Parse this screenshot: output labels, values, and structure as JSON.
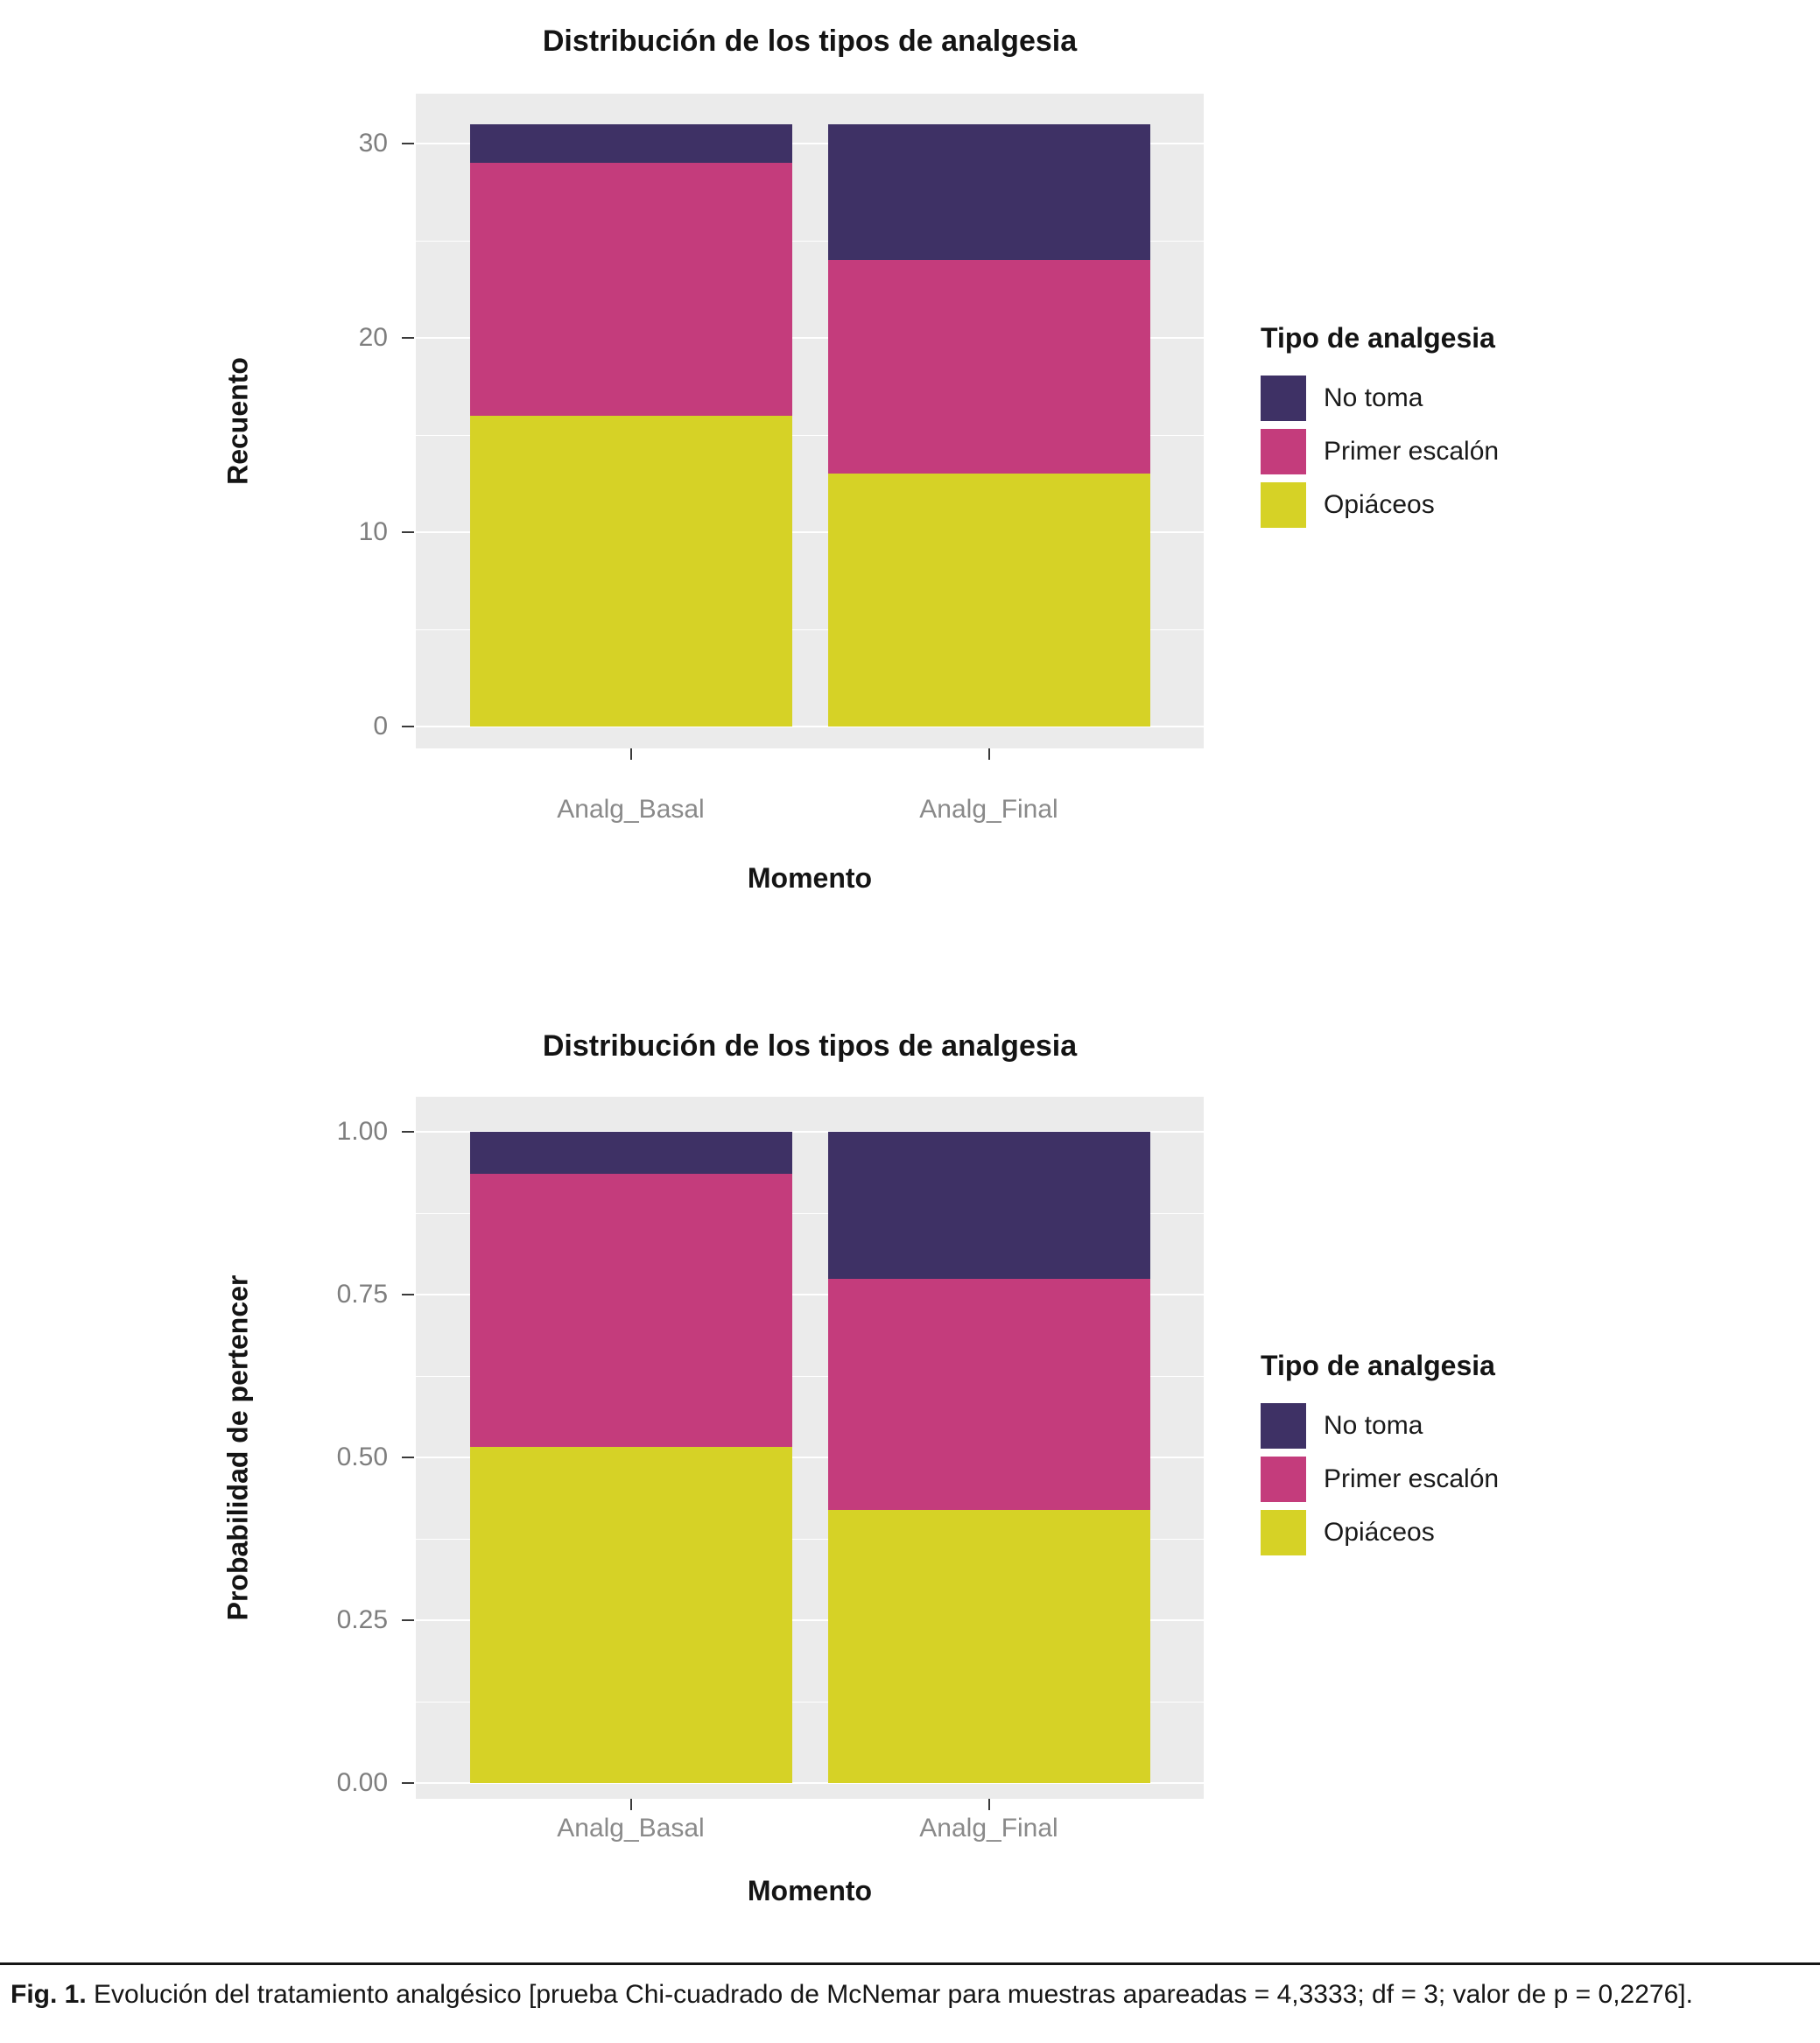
{
  "caption": {
    "label": "Fig. 1.",
    "text": " Evolución del tratamiento analgésico [prueba Chi-cuadrado de McNemar para muestras apareadas = 4,3333; df = 3; valor de p = 0,2276]."
  },
  "colors": {
    "panel_background": "#EBEBEB",
    "gridline": "#FFFFFF",
    "axis_text": "#8A8A8A",
    "no_toma": "#3E3165",
    "primer_escalon": "#C43C7C",
    "opiaceos": "#D6D226"
  },
  "chart_data": [
    {
      "type": "bar",
      "stacked": true,
      "title": "Distribución de los tipos de analgesia",
      "xlabel": "Momento",
      "ylabel": "Recuento",
      "categories": [
        "Analg_Basal",
        "Analg_Final"
      ],
      "series": [
        {
          "name": "No toma",
          "color": "#3E3165",
          "values": [
            2,
            7
          ]
        },
        {
          "name": "Primer escalón",
          "color": "#C43C7C",
          "values": [
            13,
            11
          ]
        },
        {
          "name": "Opiáceos",
          "color": "#D6D226",
          "values": [
            16,
            13
          ]
        }
      ],
      "stack_order_bottom_to_top": [
        "Opiáceos",
        "Primer escalón",
        "No toma"
      ],
      "totals": [
        31,
        31
      ],
      "ylim": [
        0,
        31
      ],
      "yticks": [
        {
          "value": 0,
          "label": "0"
        },
        {
          "value": 10,
          "label": "10"
        },
        {
          "value": 20,
          "label": "20"
        },
        {
          "value": 30,
          "label": "30"
        }
      ],
      "minor_gridlines": [
        5,
        15,
        25
      ],
      "legend": {
        "title": "Tipo de analgesia",
        "position": "right"
      },
      "grid": true
    },
    {
      "type": "bar",
      "stacked": true,
      "title": "Distribución de los tipos de analgesia",
      "xlabel": "Momento",
      "ylabel": "Probabilidad de pertencer",
      "categories": [
        "Analg_Basal",
        "Analg_Final"
      ],
      "series": [
        {
          "name": "No toma",
          "color": "#3E3165",
          "values": [
            0.065,
            0.226
          ]
        },
        {
          "name": "Primer escalón",
          "color": "#C43C7C",
          "values": [
            0.419,
            0.355
          ]
        },
        {
          "name": "Opiáceos",
          "color": "#D6D226",
          "values": [
            0.516,
            0.419
          ]
        }
      ],
      "stack_order_bottom_to_top": [
        "Opiáceos",
        "Primer escalón",
        "No toma"
      ],
      "totals": [
        1.0,
        1.0
      ],
      "ylim": [
        0,
        1
      ],
      "yticks": [
        {
          "value": 0,
          "label": "0.00"
        },
        {
          "value": 0.25,
          "label": "0.25"
        },
        {
          "value": 0.5,
          "label": "0.50"
        },
        {
          "value": 0.75,
          "label": "0.75"
        },
        {
          "value": 1,
          "label": "1.00"
        }
      ],
      "minor_gridlines": [
        0.125,
        0.375,
        0.625,
        0.875
      ],
      "legend": {
        "title": "Tipo de analgesia",
        "position": "right"
      },
      "grid": true
    }
  ]
}
